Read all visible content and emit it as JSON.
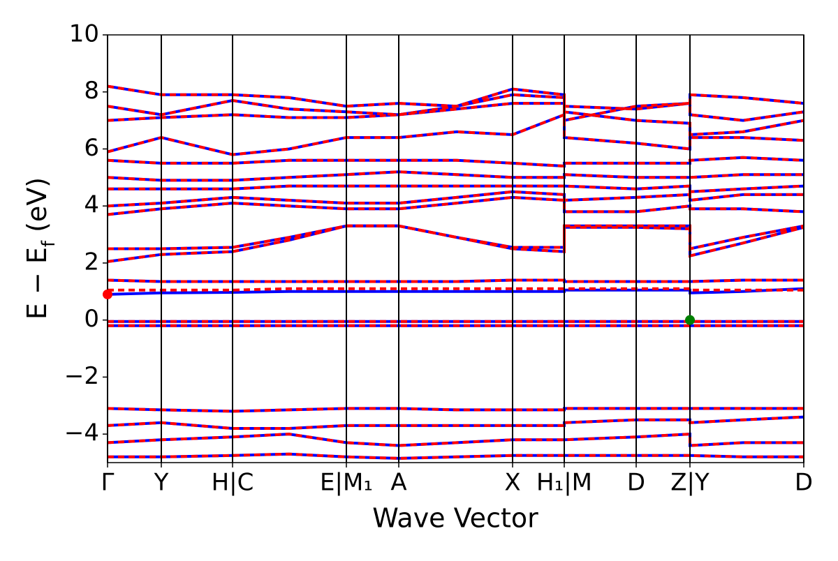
{
  "chart_data": {
    "type": "line",
    "x_label": "Wave Vector",
    "y_label": [
      "E − E",
      "f",
      " (eV)"
    ],
    "xlim": [
      0,
      9.97
    ],
    "ylim": [
      -5,
      10
    ],
    "xticks": [
      {
        "value": 0,
        "label": "Γ"
      },
      {
        "value": 0.77,
        "label": "Y"
      },
      {
        "value": 1.79,
        "label": "H|C"
      },
      {
        "value": 3.42,
        "label": "E|M₁"
      },
      {
        "value": 4.17,
        "label": "A"
      },
      {
        "value": 5.8,
        "label": "X"
      },
      {
        "value": 6.54,
        "label": "H₁|M"
      },
      {
        "value": 7.57,
        "label": "D"
      },
      {
        "value": 8.34,
        "label": "Z|Y"
      },
      {
        "value": 9.97,
        "label": "D"
      }
    ],
    "yticks": [
      {
        "value": -4,
        "label": "−4"
      },
      {
        "value": -2,
        "label": "−2"
      },
      0,
      2,
      4,
      6,
      8,
      10
    ],
    "x": [
      0,
      0.77,
      1.79,
      2.6,
      3.42,
      4.17,
      5.0,
      5.8,
      6.54,
      6.54,
      7.57,
      8.34,
      8.34,
      9.1,
      9.97
    ],
    "series": [
      {
        "color": "#0000ff",
        "dashed": false,
        "bands": [
          [
            -4.8,
            -4.8,
            -4.75,
            -4.7,
            -4.8,
            -4.85,
            -4.8,
            -4.75,
            -4.75,
            -4.75,
            -4.75,
            -4.75,
            -4.75,
            -4.8,
            -4.8
          ],
          [
            -4.3,
            -4.2,
            -4.1,
            -4.0,
            -4.3,
            -4.4,
            -4.3,
            -4.2,
            -4.2,
            -4.2,
            -4.1,
            -4.0,
            -4.4,
            -4.3,
            -4.3
          ],
          [
            -3.7,
            -3.6,
            -3.8,
            -3.8,
            -3.7,
            -3.7,
            -3.7,
            -3.7,
            -3.7,
            -3.6,
            -3.5,
            -3.5,
            -3.6,
            -3.5,
            -3.4
          ],
          [
            -3.1,
            -3.15,
            -3.2,
            -3.15,
            -3.1,
            -3.1,
            -3.15,
            -3.15,
            -3.15,
            -3.1,
            -3.1,
            -3.1,
            -3.1,
            -3.1,
            -3.1
          ],
          [
            -0.05,
            -0.05,
            -0.05,
            -0.05,
            -0.05,
            -0.05,
            -0.05,
            -0.05,
            -0.05,
            -0.05,
            -0.05,
            -0.05,
            -0.05,
            -0.05,
            -0.05
          ],
          [
            -0.2,
            -0.2,
            -0.2,
            -0.2,
            -0.2,
            -0.2,
            -0.2,
            -0.2,
            -0.2,
            -0.2,
            -0.2,
            -0.2,
            -0.2,
            -0.2,
            -0.2
          ],
          [
            0.9,
            0.95,
            0.97,
            1.0,
            1.0,
            1.0,
            1.0,
            1.0,
            1.0,
            1.05,
            1.05,
            1.05,
            0.95,
            1.0,
            1.1
          ],
          [
            1.4,
            1.35,
            1.35,
            1.35,
            1.35,
            1.35,
            1.35,
            1.4,
            1.4,
            1.35,
            1.35,
            1.35,
            1.35,
            1.4,
            1.4
          ],
          [
            2.05,
            2.3,
            2.4,
            2.8,
            3.3,
            3.3,
            2.9,
            2.5,
            2.4,
            3.25,
            3.25,
            3.2,
            2.25,
            2.7,
            3.25
          ],
          [
            2.5,
            2.5,
            2.55,
            2.9,
            3.3,
            3.3,
            2.9,
            2.55,
            2.55,
            3.3,
            3.3,
            3.3,
            2.5,
            2.9,
            3.3
          ],
          [
            3.7,
            3.9,
            4.1,
            4.0,
            3.9,
            3.9,
            4.1,
            4.3,
            4.2,
            3.8,
            3.8,
            4.0,
            3.9,
            3.9,
            3.8
          ],
          [
            4.0,
            4.1,
            4.3,
            4.2,
            4.1,
            4.1,
            4.3,
            4.5,
            4.4,
            4.2,
            4.3,
            4.4,
            4.2,
            4.4,
            4.4
          ],
          [
            4.6,
            4.6,
            4.6,
            4.7,
            4.7,
            4.7,
            4.7,
            4.7,
            4.7,
            4.7,
            4.6,
            4.7,
            4.5,
            4.6,
            4.7
          ],
          [
            5.0,
            4.9,
            4.9,
            5.0,
            5.1,
            5.2,
            5.1,
            5.0,
            5.0,
            5.1,
            5.0,
            5.0,
            5.0,
            5.1,
            5.1
          ],
          [
            5.6,
            5.5,
            5.5,
            5.6,
            5.6,
            5.6,
            5.6,
            5.5,
            5.4,
            5.5,
            5.5,
            5.5,
            5.6,
            5.7,
            5.6
          ],
          [
            5.9,
            6.4,
            5.8,
            6.0,
            6.4,
            6.4,
            6.6,
            6.5,
            7.2,
            6.4,
            6.2,
            6.0,
            6.4,
            6.4,
            6.3
          ],
          [
            7.0,
            7.1,
            7.2,
            7.1,
            7.1,
            7.2,
            7.5,
            7.9,
            7.8,
            7.3,
            7.0,
            6.9,
            6.5,
            6.6,
            7.0
          ],
          [
            7.5,
            7.2,
            7.7,
            7.4,
            7.3,
            7.2,
            7.4,
            7.6,
            7.6,
            7.0,
            7.5,
            7.6,
            7.2,
            7.0,
            7.3
          ],
          [
            8.2,
            7.9,
            7.9,
            7.8,
            7.5,
            7.6,
            7.5,
            8.1,
            7.9,
            7.5,
            7.4,
            7.6,
            7.9,
            7.8,
            7.6
          ]
        ]
      },
      {
        "color": "#ff0000",
        "dashed": true,
        "bands": [
          [
            -4.8,
            -4.8,
            -4.75,
            -4.7,
            -4.8,
            -4.85,
            -4.8,
            -4.75,
            -4.75,
            -4.75,
            -4.75,
            -4.75,
            -4.75,
            -4.8,
            -4.8
          ],
          [
            -4.3,
            -4.2,
            -4.1,
            -4.0,
            -4.3,
            -4.4,
            -4.3,
            -4.2,
            -4.2,
            -4.2,
            -4.1,
            -4.0,
            -4.4,
            -4.3,
            -4.3
          ],
          [
            -3.7,
            -3.6,
            -3.8,
            -3.8,
            -3.7,
            -3.7,
            -3.7,
            -3.7,
            -3.7,
            -3.6,
            -3.5,
            -3.5,
            -3.6,
            -3.5,
            -3.4
          ],
          [
            -3.1,
            -3.15,
            -3.2,
            -3.15,
            -3.1,
            -3.1,
            -3.15,
            -3.15,
            -3.15,
            -3.1,
            -3.1,
            -3.1,
            -3.1,
            -3.1,
            -3.1
          ],
          [
            -0.05,
            -0.05,
            -0.05,
            -0.05,
            -0.05,
            -0.05,
            -0.05,
            -0.05,
            -0.05,
            -0.05,
            -0.05,
            -0.05,
            -0.05,
            -0.05,
            -0.05
          ],
          [
            -0.2,
            -0.2,
            -0.2,
            -0.2,
            -0.2,
            -0.2,
            -0.2,
            -0.2,
            -0.2,
            -0.2,
            -0.2,
            -0.2,
            -0.2,
            -0.2,
            -0.2
          ],
          [
            1.05,
            1.05,
            1.05,
            1.1,
            1.1,
            1.1,
            1.1,
            1.1,
            1.1,
            1.1,
            1.1,
            1.1,
            1.05,
            1.05,
            1.05
          ],
          [
            1.4,
            1.35,
            1.35,
            1.35,
            1.35,
            1.35,
            1.35,
            1.4,
            1.4,
            1.35,
            1.35,
            1.35,
            1.35,
            1.4,
            1.4
          ],
          [
            2.05,
            2.3,
            2.4,
            2.8,
            3.3,
            3.3,
            2.9,
            2.5,
            2.4,
            3.25,
            3.25,
            3.2,
            2.25,
            2.7,
            3.25
          ],
          [
            2.5,
            2.5,
            2.55,
            2.9,
            3.3,
            3.3,
            2.9,
            2.55,
            2.55,
            3.3,
            3.3,
            3.3,
            2.5,
            2.9,
            3.3
          ],
          [
            3.7,
            3.9,
            4.1,
            4.0,
            3.9,
            3.9,
            4.1,
            4.3,
            4.2,
            3.8,
            3.8,
            4.0,
            3.9,
            3.9,
            3.8
          ],
          [
            4.0,
            4.1,
            4.3,
            4.2,
            4.1,
            4.1,
            4.3,
            4.5,
            4.4,
            4.2,
            4.3,
            4.4,
            4.2,
            4.4,
            4.4
          ],
          [
            4.6,
            4.6,
            4.6,
            4.7,
            4.7,
            4.7,
            4.7,
            4.7,
            4.7,
            4.7,
            4.6,
            4.7,
            4.5,
            4.6,
            4.7
          ],
          [
            5.0,
            4.9,
            4.9,
            5.0,
            5.1,
            5.2,
            5.1,
            5.0,
            5.0,
            5.1,
            5.0,
            5.0,
            5.0,
            5.1,
            5.1
          ],
          [
            5.6,
            5.5,
            5.5,
            5.6,
            5.6,
            5.6,
            5.6,
            5.5,
            5.4,
            5.5,
            5.5,
            5.5,
            5.6,
            5.7,
            5.6
          ],
          [
            5.9,
            6.4,
            5.8,
            6.0,
            6.4,
            6.4,
            6.6,
            6.5,
            7.2,
            6.4,
            6.2,
            6.0,
            6.4,
            6.4,
            6.3
          ],
          [
            7.0,
            7.1,
            7.2,
            7.1,
            7.1,
            7.2,
            7.5,
            7.9,
            7.8,
            7.3,
            7.0,
            6.9,
            6.5,
            6.6,
            7.0
          ],
          [
            7.5,
            7.2,
            7.7,
            7.4,
            7.3,
            7.2,
            7.4,
            7.6,
            7.6,
            7.0,
            7.5,
            7.6,
            7.2,
            7.0,
            7.3
          ],
          [
            8.2,
            7.9,
            7.9,
            7.8,
            7.5,
            7.6,
            7.5,
            8.1,
            7.9,
            7.5,
            7.4,
            7.6,
            7.9,
            7.8,
            7.6
          ]
        ]
      }
    ],
    "points": [
      {
        "x": 8.34,
        "y": 0,
        "color": "#008000"
      },
      {
        "x": 0,
        "y": 0.9,
        "color": "#ff0000"
      }
    ]
  }
}
